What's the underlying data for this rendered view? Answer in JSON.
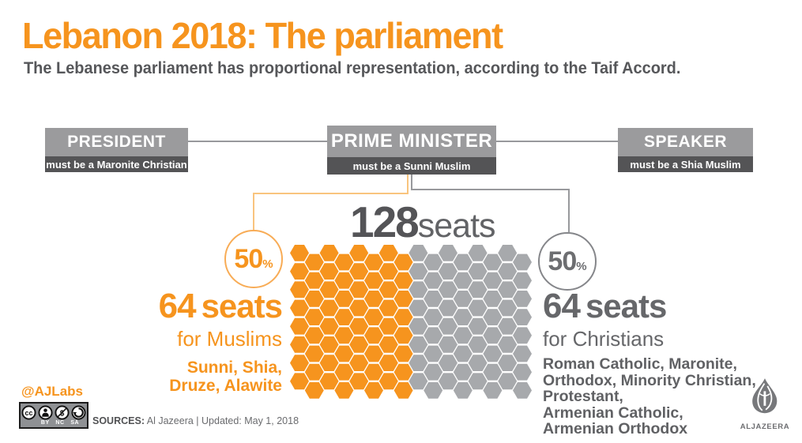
{
  "header": {
    "title": "Lebanon 2018: The parliament",
    "subtitle": "The Lebanese parliament has proportional representation, according to the Taif Accord."
  },
  "org_chart": {
    "boxes": [
      {
        "title": "PRESIDENT",
        "rule": "must be a Maronite Christian"
      },
      {
        "title": "PRIME MINISTER",
        "rule": "must be a Sunni Muslim"
      },
      {
        "title": "SPEAKER",
        "rule": "must be a Shia Muslim"
      }
    ]
  },
  "seats": {
    "total_number": "128",
    "total_unit": "seats",
    "muslim": {
      "percent": "50",
      "percent_sign": "%",
      "count": "64",
      "count_unit": "seats",
      "label": "for Muslims",
      "groups_lines": [
        "Sunni, Shia,",
        "Druze, Alawite"
      ]
    },
    "christian": {
      "percent": "50",
      "percent_sign": "%",
      "count": "64",
      "count_unit": "seats",
      "label": "for Christians",
      "groups_lines": [
        "Roman Catholic, Maronite,",
        "Orthodox, Minority Christian,",
        "Protestant,",
        "Armenian Catholic,",
        "Armenian Orthodox"
      ]
    }
  },
  "footer": {
    "credit": "@AJLabs",
    "license_labels": [
      "BY",
      "NC",
      "SA"
    ],
    "sources_label": "SOURCES:",
    "sources_text": " Al Jazeera | Updated: May 1, 2018",
    "logo_text": "ALJAZEERA"
  },
  "colors": {
    "orange": "#F6941E",
    "light_orange_line": "#F9C47E",
    "box_gray": "#9B9B9D",
    "rule_bar_gray": "#545456",
    "hex_gray": "#A7A9AC",
    "dark_text": "#545457",
    "medium_text": "#6D6E71"
  },
  "chart_data": {
    "type": "pie",
    "render": "hexagon-seat-grid",
    "title": "Lebanon parliament seat distribution",
    "total_seats": 128,
    "slices": [
      {
        "label": "Muslims",
        "value": 64,
        "percent": 50,
        "color": "#F6941E",
        "groups": [
          "Sunni",
          "Shia",
          "Druze",
          "Alawite"
        ]
      },
      {
        "label": "Christians",
        "value": 64,
        "percent": 50,
        "color": "#A7A9AC",
        "groups": [
          "Roman Catholic",
          "Maronite",
          "Orthodox",
          "Minority Christian",
          "Protestant",
          "Armenian Catholic",
          "Armenian Orthodox"
        ]
      }
    ],
    "grid": {
      "columns": 16,
      "rows": 8,
      "split_column": 8
    }
  }
}
